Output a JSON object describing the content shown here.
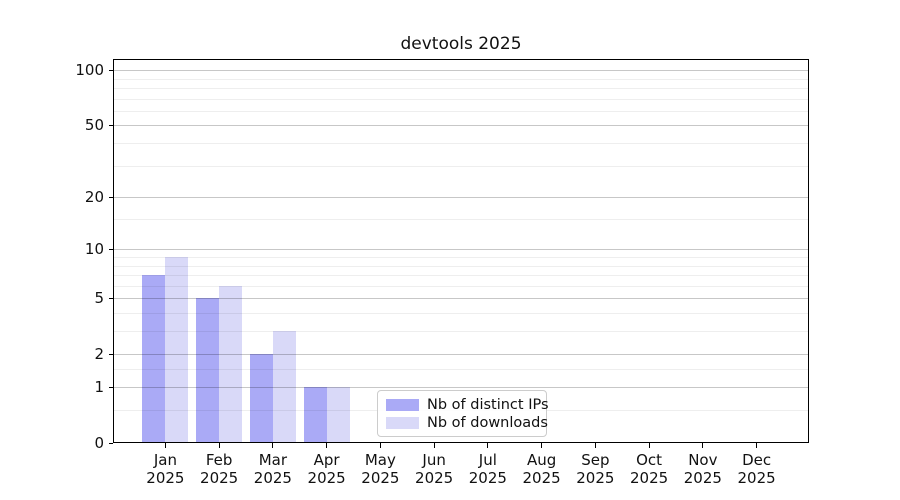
{
  "chart_data": {
    "type": "bar",
    "title": "devtools 2025",
    "categories": [
      "Jan",
      "Feb",
      "Mar",
      "Apr",
      "May",
      "Jun",
      "Jul",
      "Aug",
      "Sep",
      "Oct",
      "Nov",
      "Dec"
    ],
    "category_year": "2025",
    "series": [
      {
        "name": "Nb of distinct IPs",
        "color": "#aaaaf6",
        "values": [
          7,
          5,
          2,
          1,
          0,
          0,
          0,
          0,
          0,
          0,
          0,
          0
        ]
      },
      {
        "name": "Nb of downloads",
        "color": "#d9d9f8",
        "values": [
          9,
          6,
          3,
          1,
          0,
          0,
          0,
          0,
          0,
          0,
          0,
          0
        ]
      }
    ],
    "y_scale": "log1p",
    "y_ticks": [
      0,
      1,
      2,
      5,
      10,
      20,
      50,
      100
    ],
    "y_minor_ticks": [
      0.5,
      1.5,
      3,
      4,
      6,
      7,
      8,
      9,
      15,
      30,
      40,
      60,
      70,
      80,
      90
    ],
    "ylim": [
      0,
      115
    ],
    "grid": true,
    "legend_position": "lower center"
  },
  "colors": {
    "grid_major": "rgba(0,0,0,0.22)",
    "grid_minor": "rgba(0,0,0,0.065)",
    "axis": "#000000",
    "background": "#ffffff"
  }
}
